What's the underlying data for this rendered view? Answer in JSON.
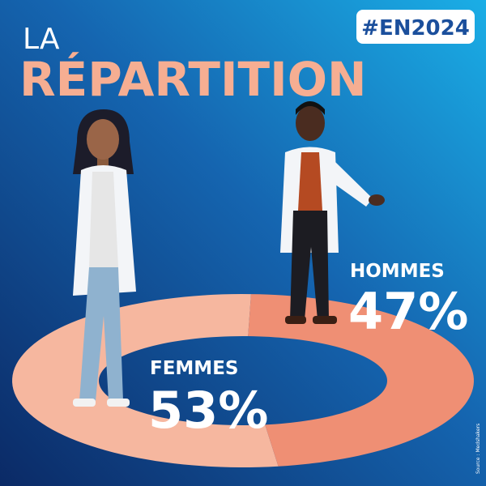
{
  "chart_data": {
    "type": "pie",
    "supertitle": "LA",
    "title": "RÉPARTITION",
    "hashtag": "#EN2024",
    "categories": [
      "FEMMES",
      "HOMMES"
    ],
    "values": [
      53,
      47
    ],
    "value_labels": [
      "53%",
      "47%"
    ],
    "colors": [
      "#f6b79f",
      "#ef8f74"
    ],
    "source": "Source : Medshakers"
  }
}
